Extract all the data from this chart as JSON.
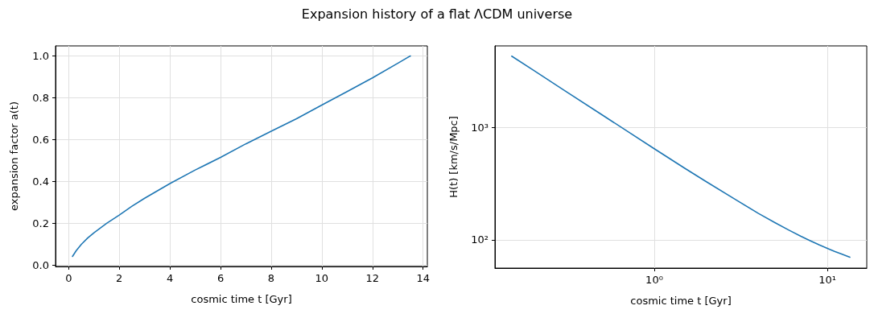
{
  "chart_data": [
    {
      "type": "line",
      "title": "Expansion history of a flat ΛCDM universe",
      "xlabel": "cosmic time t [Gyr]",
      "ylabel": "expansion factor a(t)",
      "x": [
        0.15,
        0.3,
        0.5,
        0.75,
        1,
        1.5,
        2,
        2.5,
        3,
        4,
        5,
        6,
        7,
        8,
        9,
        10,
        11,
        12,
        13,
        13.5
      ],
      "series": [
        {
          "color": "#1f77b4",
          "values": [
            0.042,
            0.07,
            0.1,
            0.13,
            0.155,
            0.2,
            0.24,
            0.282,
            0.32,
            0.39,
            0.455,
            0.515,
            0.58,
            0.64,
            0.7,
            0.765,
            0.83,
            0.895,
            0.965,
            1.0
          ]
        }
      ],
      "xlim": [
        -0.52,
        14.17
      ],
      "xticks": [
        0,
        2,
        4,
        6,
        8,
        10,
        12,
        14
      ],
      "ylim": [
        -0.006,
        1.048
      ],
      "yticks": [
        {
          "value": 0,
          "label": "0.0"
        },
        0.2,
        0.4,
        0.6,
        0.8,
        {
          "value": 1,
          "label": "1.0"
        }
      ],
      "grid": true,
      "marker": "none",
      "line_style": "solid"
    },
    {
      "type": "line",
      "xlabel": "cosmic time t [Gyr]",
      "ylabel": "H(t) [km/s/Mpc]",
      "log": "xy",
      "x": [
        0.15,
        0.2,
        0.3,
        0.5,
        0.7,
        1,
        1.5,
        2,
        3,
        4,
        5,
        6,
        7,
        8,
        9,
        10,
        11,
        12,
        13.5
      ],
      "series": [
        {
          "color": "#1f77b4",
          "values": [
            4350,
            3260,
            2170,
            1300,
            930,
            650,
            435,
            330,
            225,
            172,
            142,
            122,
            108,
            98,
            90,
            84,
            79,
            75,
            70
          ]
        }
      ],
      "xlim": [
        0.12,
        16.9
      ],
      "xticks": [
        {
          "value": 1,
          "label": "10⁰"
        },
        {
          "value": 10,
          "label": "10¹"
        }
      ],
      "ylim": [
        56,
        5370
      ],
      "yticks": [
        {
          "value": 100,
          "label": "10²"
        },
        {
          "value": 1000,
          "label": "10³"
        }
      ],
      "grid": true,
      "marker": "none",
      "line_style": "solid"
    }
  ]
}
